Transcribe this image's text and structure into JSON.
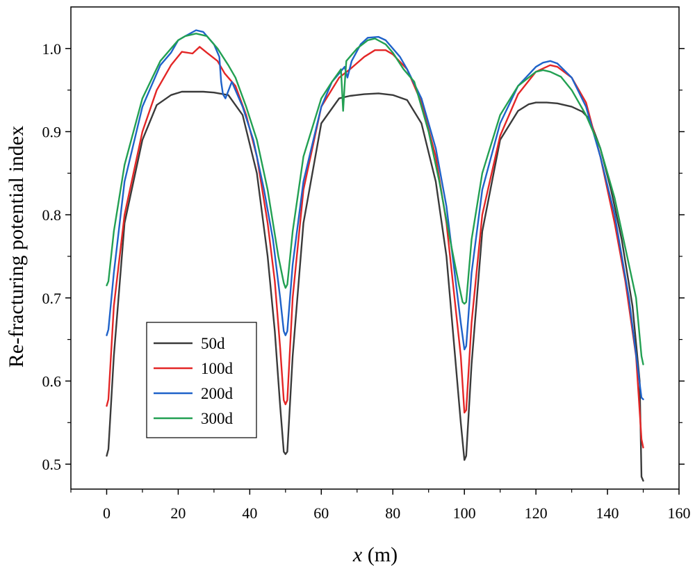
{
  "chart_data": {
    "type": "line",
    "title": "",
    "xlabel_var": "x",
    "xlabel_unit": " (m)",
    "ylabel": "Re-fracturing potential index",
    "xlim": [
      -10,
      160
    ],
    "ylim": [
      0.47,
      1.05
    ],
    "xticks": [
      0,
      20,
      40,
      60,
      80,
      100,
      120,
      140,
      160
    ],
    "xtick_labels": [
      "0",
      "20",
      "40",
      "60",
      "80",
      "100",
      "120",
      "140",
      "160"
    ],
    "yticks": [
      0.5,
      0.6,
      0.7,
      0.8,
      0.9,
      1.0
    ],
    "ytick_labels": [
      "0.5",
      "0.6",
      "0.7",
      "0.8",
      "0.9",
      "1.0"
    ],
    "legend_position": "bottom-left",
    "series": [
      {
        "name": "50d",
        "color": "#3a3a3a",
        "x": [
          0,
          0.5,
          2,
          5,
          10,
          14,
          18,
          21,
          24,
          27,
          30,
          34,
          38,
          42,
          45,
          47,
          48.5,
          49.5,
          50,
          50.5,
          52,
          55,
          60,
          65,
          68,
          72,
          76,
          80,
          84,
          88,
          92,
          95,
          97,
          99,
          100,
          100.5,
          102,
          105,
          110,
          115,
          118,
          120,
          123,
          126,
          130,
          133,
          135,
          138,
          141,
          144,
          147,
          149,
          149.5,
          150
        ],
        "y": [
          0.51,
          0.518,
          0.63,
          0.79,
          0.89,
          0.932,
          0.944,
          0.948,
          0.948,
          0.948,
          0.947,
          0.944,
          0.92,
          0.85,
          0.75,
          0.66,
          0.57,
          0.515,
          0.512,
          0.515,
          0.63,
          0.79,
          0.91,
          0.94,
          0.943,
          0.945,
          0.946,
          0.944,
          0.938,
          0.91,
          0.84,
          0.75,
          0.65,
          0.55,
          0.505,
          0.51,
          0.62,
          0.78,
          0.89,
          0.925,
          0.933,
          0.935,
          0.935,
          0.934,
          0.93,
          0.924,
          0.915,
          0.88,
          0.83,
          0.77,
          0.69,
          0.6,
          0.485,
          0.48
        ]
      },
      {
        "name": "100d",
        "color": "#e32626",
        "x": [
          0,
          0.5,
          2,
          5,
          10,
          14,
          18,
          21,
          24,
          26,
          28,
          31,
          33,
          36,
          39,
          42,
          45,
          47,
          48.5,
          49.5,
          50,
          50.5,
          52,
          55,
          60,
          65,
          68,
          72,
          75,
          78,
          80,
          84,
          88,
          92,
          95,
          97,
          99,
          100,
          100.5,
          102,
          105,
          110,
          115,
          120,
          124,
          126,
          130,
          134,
          138,
          142,
          145,
          148,
          149.5,
          150
        ],
        "y": [
          0.57,
          0.578,
          0.69,
          0.8,
          0.9,
          0.95,
          0.98,
          0.996,
          0.994,
          1.002,
          0.995,
          0.985,
          0.97,
          0.955,
          0.92,
          0.87,
          0.79,
          0.72,
          0.64,
          0.577,
          0.572,
          0.577,
          0.7,
          0.83,
          0.93,
          0.965,
          0.975,
          0.99,
          0.998,
          0.998,
          0.993,
          0.975,
          0.935,
          0.87,
          0.79,
          0.71,
          0.63,
          0.562,
          0.565,
          0.67,
          0.8,
          0.895,
          0.945,
          0.972,
          0.98,
          0.978,
          0.965,
          0.935,
          0.87,
          0.79,
          0.72,
          0.63,
          0.53,
          0.52
        ]
      },
      {
        "name": "200d",
        "color": "#1f62c9",
        "x": [
          0,
          0.5,
          2,
          5,
          10,
          15,
          18,
          20,
          22,
          25,
          27,
          30,
          31.5,
          32,
          32.5,
          33.2,
          35,
          38,
          41,
          44,
          46.5,
          48.5,
          49.5,
          50,
          50.5,
          52,
          55,
          60,
          63,
          65,
          66.5,
          67.3,
          68.5,
          71,
          73,
          76,
          78,
          80,
          82,
          84,
          88,
          92,
          95,
          97,
          99,
          100,
          100.5,
          102,
          105,
          110,
          115,
          120,
          122,
          124,
          126,
          130,
          134,
          138,
          142,
          146,
          149.5,
          150
        ],
        "y": [
          0.655,
          0.662,
          0.73,
          0.84,
          0.93,
          0.98,
          0.995,
          1.01,
          1.015,
          1.022,
          1.02,
          1.005,
          0.99,
          0.96,
          0.945,
          0.94,
          0.96,
          0.93,
          0.89,
          0.83,
          0.77,
          0.7,
          0.66,
          0.655,
          0.66,
          0.74,
          0.84,
          0.93,
          0.96,
          0.97,
          0.978,
          0.965,
          0.985,
          1.005,
          1.013,
          1.014,
          1.01,
          1.0,
          0.99,
          0.975,
          0.94,
          0.88,
          0.81,
          0.74,
          0.67,
          0.638,
          0.642,
          0.73,
          0.83,
          0.91,
          0.955,
          0.978,
          0.983,
          0.985,
          0.982,
          0.965,
          0.93,
          0.87,
          0.8,
          0.7,
          0.58,
          0.578
        ]
      },
      {
        "name": "300d",
        "color": "#22a052",
        "x": [
          0,
          0.5,
          2,
          5,
          10,
          15,
          18,
          20,
          22,
          25,
          28,
          31,
          34,
          36,
          39,
          42,
          45,
          48,
          49.5,
          50,
          50.5,
          52,
          55,
          60,
          63,
          65.5,
          66.1,
          66.5,
          67,
          70,
          73,
          75,
          78,
          80,
          83,
          86,
          90,
          93,
          96,
          98.5,
          99.5,
          100,
          100.5,
          102,
          105,
          110,
          115,
          120,
          122,
          124,
          127,
          130,
          134,
          138,
          142,
          146,
          148,
          149.5,
          150
        ],
        "y": [
          0.715,
          0.72,
          0.78,
          0.86,
          0.94,
          0.985,
          1.0,
          1.01,
          1.015,
          1.018,
          1.015,
          1.0,
          0.98,
          0.965,
          0.93,
          0.89,
          0.83,
          0.75,
          0.718,
          0.712,
          0.716,
          0.78,
          0.87,
          0.94,
          0.96,
          0.975,
          0.925,
          0.955,
          0.985,
          1.0,
          1.01,
          1.012,
          1.005,
          0.995,
          0.975,
          0.96,
          0.9,
          0.84,
          0.77,
          0.715,
          0.695,
          0.693,
          0.695,
          0.77,
          0.85,
          0.92,
          0.955,
          0.972,
          0.974,
          0.972,
          0.966,
          0.95,
          0.92,
          0.88,
          0.82,
          0.74,
          0.7,
          0.63,
          0.62
        ]
      }
    ]
  }
}
